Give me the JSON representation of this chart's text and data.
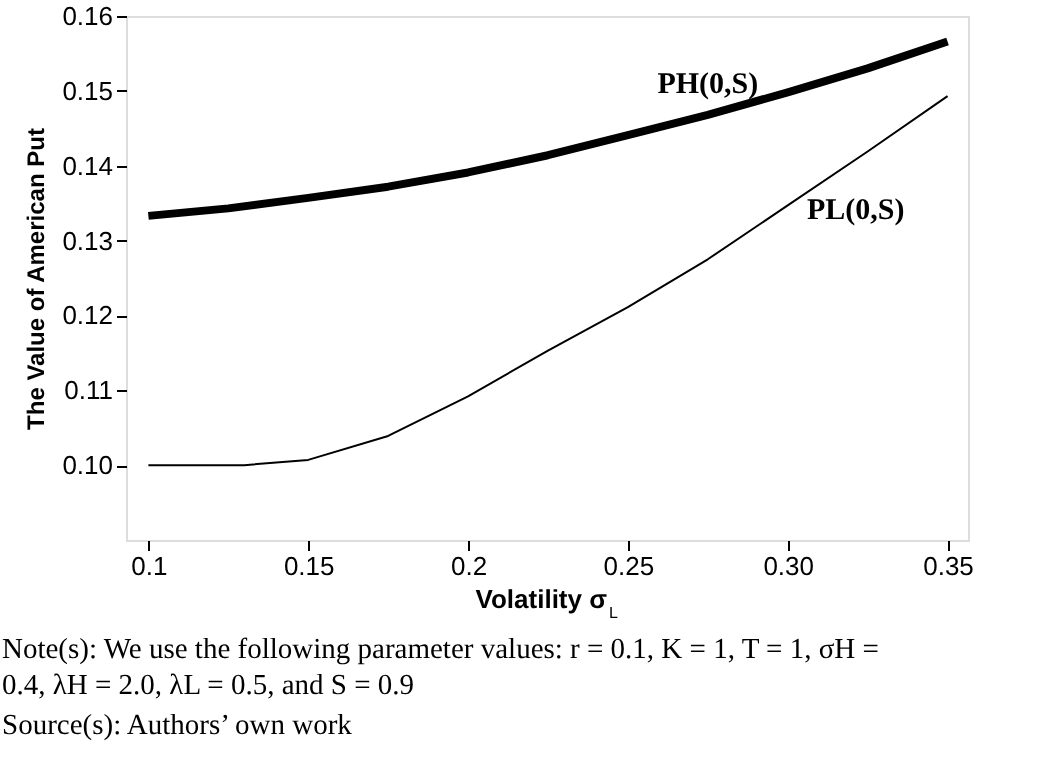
{
  "chart_data": {
    "type": "line",
    "xlabel": "Volatility σ$_{L}$",
    "ylabel": "The Value of American Put",
    "x": [
      0.1,
      0.125,
      0.15,
      0.175,
      0.2,
      0.225,
      0.25,
      0.275,
      0.3,
      0.325,
      0.35
    ],
    "series": [
      {
        "name": "PH(0,S)",
        "color": "#000000",
        "values": [
          0.1333,
          0.1343,
          0.1357,
          0.1372,
          0.1391,
          0.1414,
          0.1441,
          0.1468,
          0.1498,
          0.153,
          0.1566
        ]
      },
      {
        "name": "PL(0,S)",
        "color": "#000000",
        "x": [
          0.1,
          0.13,
          0.15,
          0.175,
          0.2,
          0.225,
          0.25,
          0.275,
          0.3,
          0.325,
          0.35
        ],
        "values": [
          0.1,
          0.1,
          0.1007,
          0.1039,
          0.1092,
          0.1153,
          0.1211,
          0.1275,
          0.1347,
          0.1419,
          0.1493
        ]
      }
    ],
    "xlim": [
      0.093,
      0.3564
    ],
    "ylim": [
      0.09,
      0.16
    ],
    "xticks": [
      0.1,
      0.15,
      0.2,
      0.25,
      {
        "value": 0.3,
        "label": "0.30"
      },
      {
        "value": 0.35,
        "label": "0.35"
      }
    ],
    "yticks": [
      {
        "value": 0.1,
        "label": "0.10"
      },
      0.11,
      0.12,
      0.13,
      0.14,
      0.15,
      0.16
    ],
    "grid": false,
    "annotations": [
      "Note(s): We use the following parameter values: r = 0.1, K = 1, T = 1, σH = 0.4, λH = 2.0, λL = 0.5, and S = 0.9",
      "Source(s): Authors’ own work"
    ]
  }
}
